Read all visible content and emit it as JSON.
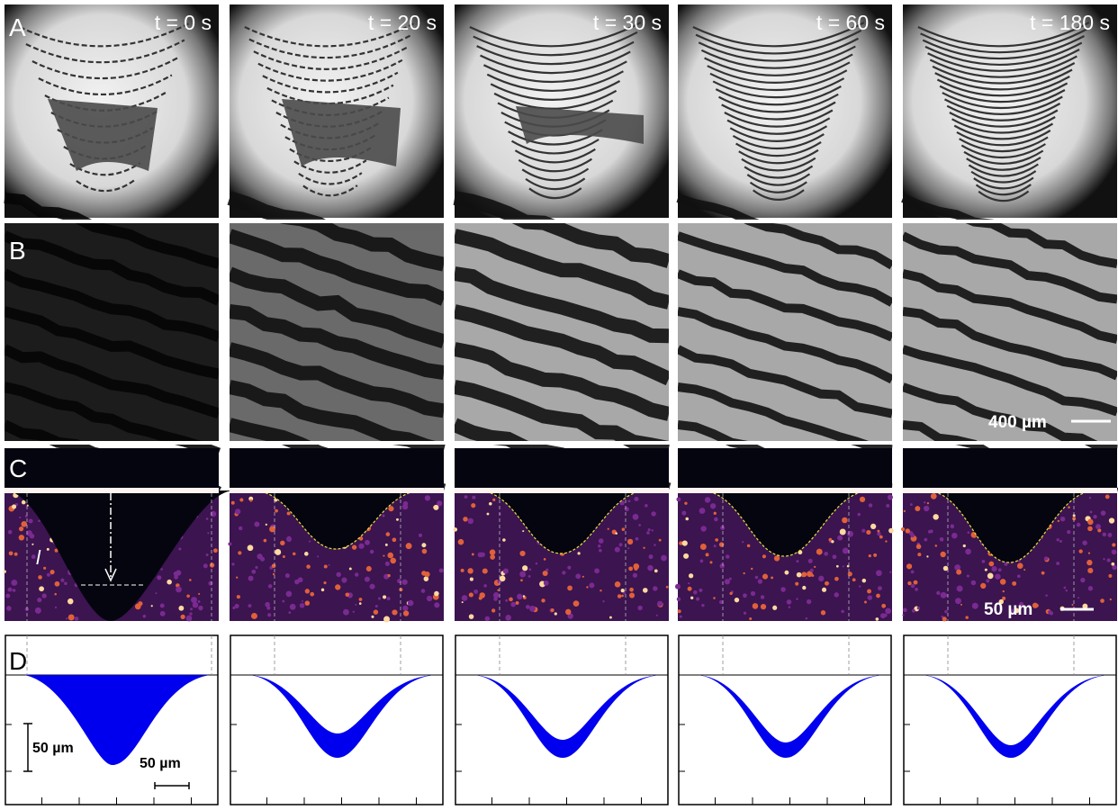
{
  "panels": {
    "labels": [
      "A",
      "B",
      "C",
      "D"
    ],
    "times": [
      "t = 0 s",
      "t = 20 s",
      "t = 30 s",
      "t = 60 s",
      "t = 180 s"
    ]
  },
  "scale_bars": {
    "b": "400 µm",
    "c": "50 µm",
    "c_length": "l",
    "d_vertical": "50 µm",
    "d_horizontal": "50 µm"
  }
}
